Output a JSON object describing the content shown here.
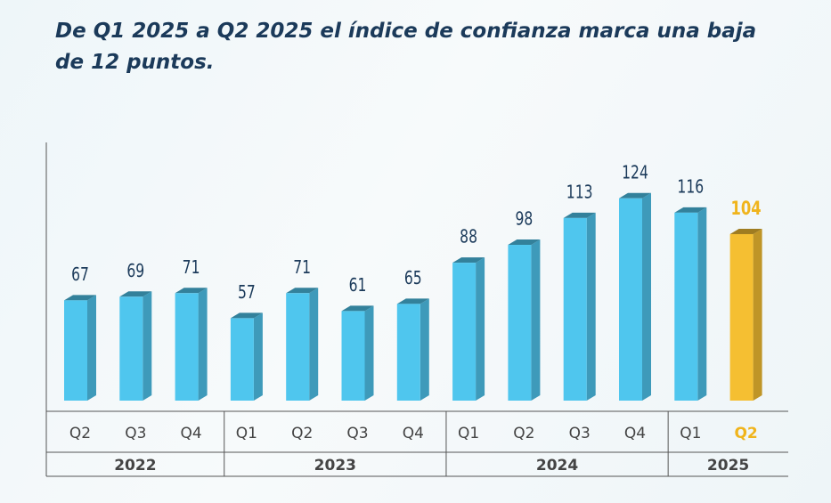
{
  "chart_data": {
    "type": "bar3d",
    "title": "De Q1 2025 a Q2 2025 el índice de confianza marca una baja de 12 puntos.",
    "groups": [
      {
        "name": "2022",
        "categories": [
          "Q2",
          "Q3",
          "Q4"
        ],
        "values": [
          67,
          69,
          71
        ],
        "colors": [
          "#4fc6ee",
          "#4fc6ee",
          "#4fc6ee"
        ]
      },
      {
        "name": "2023",
        "categories": [
          "Q1",
          "Q2",
          "Q3",
          "Q4"
        ],
        "values": [
          57,
          71,
          61,
          65
        ],
        "colors": [
          "#4fc6ee",
          "#4fc6ee",
          "#4fc6ee",
          "#4fc6ee"
        ]
      },
      {
        "name": "2024",
        "categories": [
          "Q1",
          "Q2",
          "Q3",
          "Q4"
        ],
        "values": [
          88,
          98,
          113,
          124
        ],
        "colors": [
          "#4fc6ee",
          "#4fc6ee",
          "#4fc6ee",
          "#4fc6ee"
        ]
      },
      {
        "name": "2025",
        "categories": [
          "Q1",
          "Q2"
        ],
        "values": [
          116,
          104
        ],
        "colors": [
          "#4fc6ee",
          "#f5bf32"
        ]
      }
    ]
  }
}
